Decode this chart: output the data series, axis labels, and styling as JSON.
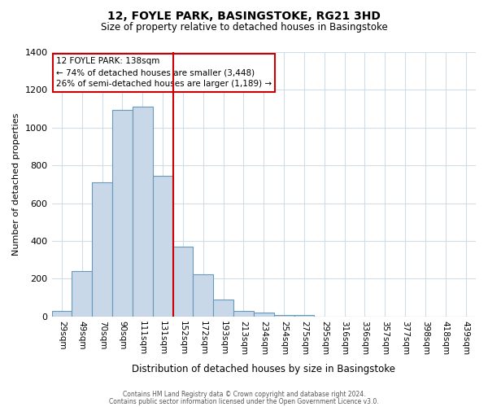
{
  "title": "12, FOYLE PARK, BASINGSTOKE, RG21 3HD",
  "subtitle": "Size of property relative to detached houses in Basingstoke",
  "xlabel": "Distribution of detached houses by size in Basingstoke",
  "ylabel": "Number of detached properties",
  "bar_labels": [
    "29sqm",
    "49sqm",
    "70sqm",
    "90sqm",
    "111sqm",
    "131sqm",
    "152sqm",
    "172sqm",
    "193sqm",
    "213sqm",
    "234sqm",
    "254sqm",
    "275sqm",
    "295sqm",
    "316sqm",
    "336sqm",
    "357sqm",
    "377sqm",
    "398sqm",
    "418sqm",
    "439sqm"
  ],
  "bar_values": [
    30,
    240,
    710,
    1095,
    1110,
    745,
    370,
    225,
    90,
    30,
    20,
    10,
    10,
    0,
    0,
    0,
    0,
    0,
    0,
    0,
    0
  ],
  "bar_color": "#c8d8e8",
  "bar_edge_color": "#6699bb",
  "vline_x": 5.5,
  "vline_color": "#cc0000",
  "annotation_line1": "12 FOYLE PARK: 138sqm",
  "annotation_line2": "← 74% of detached houses are smaller (3,448)",
  "annotation_line3": "26% of semi-detached houses are larger (1,189) →",
  "annotation_box_color": "#ffffff",
  "annotation_box_edge": "#cc0000",
  "ylim": [
    0,
    1400
  ],
  "yticks": [
    0,
    200,
    400,
    600,
    800,
    1000,
    1200,
    1400
  ],
  "footer_line1": "Contains HM Land Registry data © Crown copyright and database right 2024.",
  "footer_line2": "Contains public sector information licensed under the Open Government Licence v3.0.",
  "background_color": "#ffffff",
  "grid_color": "#d0dce8"
}
